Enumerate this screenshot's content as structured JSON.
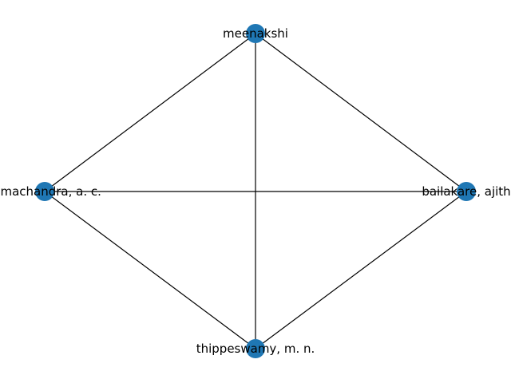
{
  "graph": {
    "node_color": "#1f77b4",
    "edge_color": "#000000",
    "nodes": [
      {
        "id": "meenakshi",
        "label": "meenakshi"
      },
      {
        "id": "ramachandra",
        "label": "ramachandra, a. c."
      },
      {
        "id": "bailakare",
        "label": "bailakare, ajith"
      },
      {
        "id": "thippeswamy",
        "label": "thippeswamy, m. n."
      }
    ],
    "edges": [
      [
        "meenakshi",
        "ramachandra"
      ],
      [
        "meenakshi",
        "bailakare"
      ],
      [
        "meenakshi",
        "thippeswamy"
      ],
      [
        "ramachandra",
        "bailakare"
      ],
      [
        "ramachandra",
        "thippeswamy"
      ],
      [
        "bailakare",
        "thippeswamy"
      ]
    ]
  }
}
